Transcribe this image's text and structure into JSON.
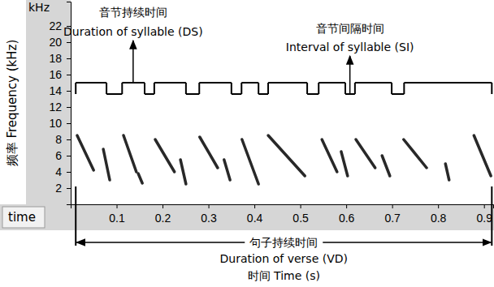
{
  "chart_data": {
    "type": "spectrogram",
    "y_unit_label": "kHz",
    "y_axis_title": "频率 Frequency (kHz)",
    "x_axis_name": "time",
    "x_axis_title": "时间 Time (s)",
    "color": "#111111",
    "xlim": [
      0,
      0.92
    ],
    "xticks": [
      0.1,
      0.2,
      0.3,
      0.4,
      0.5,
      0.6,
      0.7,
      0.8,
      0.9
    ],
    "ylim": [
      0,
      25
    ],
    "yticks": [
      2,
      4,
      6,
      8,
      10,
      12,
      14,
      16,
      18,
      20,
      22
    ],
    "series": [
      {
        "x": [
          0.014,
          0.05
        ],
        "values": [
          8.5,
          4.2
        ]
      },
      {
        "x": [
          0.071,
          0.085
        ],
        "values": [
          6.8,
          3.0
        ]
      },
      {
        "x": [
          0.115,
          0.143
        ],
        "values": [
          8.5,
          4.0
        ]
      },
      {
        "x": [
          0.147,
          0.156
        ],
        "values": [
          3.8,
          2.6
        ]
      },
      {
        "x": [
          0.184,
          0.226
        ],
        "values": [
          8.0,
          4.0
        ]
      },
      {
        "x": [
          0.239,
          0.251
        ],
        "values": [
          5.5,
          2.5
        ]
      },
      {
        "x": [
          0.281,
          0.32
        ],
        "values": [
          8.3,
          4.5
        ]
      },
      {
        "x": [
          0.334,
          0.347
        ],
        "values": [
          5.5,
          3.0
        ]
      },
      {
        "x": [
          0.373,
          0.409
        ],
        "values": [
          8.0,
          2.5
        ]
      },
      {
        "x": [
          0.43,
          0.51
        ],
        "values": [
          8.5,
          3.5
        ]
      },
      {
        "x": [
          0.547,
          0.58
        ],
        "values": [
          8.0,
          4.0
        ]
      },
      {
        "x": [
          0.589,
          0.603
        ],
        "values": [
          6.5,
          3.5
        ]
      },
      {
        "x": [
          0.621,
          0.663
        ],
        "values": [
          8.0,
          4.5
        ]
      },
      {
        "x": [
          0.678,
          0.695
        ],
        "values": [
          6.0,
          3.5
        ]
      },
      {
        "x": [
          0.725,
          0.775
        ],
        "values": [
          8.0,
          4.5
        ]
      },
      {
        "x": [
          0.816,
          0.824
        ],
        "values": [
          5.0,
          3.0
        ]
      },
      {
        "x": [
          0.878,
          0.915
        ],
        "values": [
          8.5,
          3.5
        ]
      }
    ],
    "syllable_line": {
      "x": [
        0.011,
        0.078,
        0.112,
        0.161,
        0.182,
        0.251,
        0.28,
        0.35,
        0.372,
        0.409,
        0.43,
        0.515,
        0.54,
        0.598,
        0.619,
        0.699,
        0.726,
        0.917
      ],
      "values": [
        15,
        13.6,
        15,
        13.6,
        15,
        13.6,
        15,
        13.6,
        15,
        13.6,
        15,
        13.6,
        15,
        13.6,
        15,
        13.6,
        15
      ]
    },
    "annotations": [
      {
        "text": [
          "音节持续时间",
          "Duration of syllable (DS)"
        ],
        "x": 0.136,
        "y": 15
      },
      {
        "text": [
          "音节间隔时间",
          "Interval of syllable (SI)"
        ],
        "x": 0.608,
        "y": 13.6
      }
    ],
    "verse": {
      "text": [
        "句子持续时间",
        "Duration of verse (VD)"
      ],
      "start": 0.011,
      "end": 0.917
    }
  }
}
